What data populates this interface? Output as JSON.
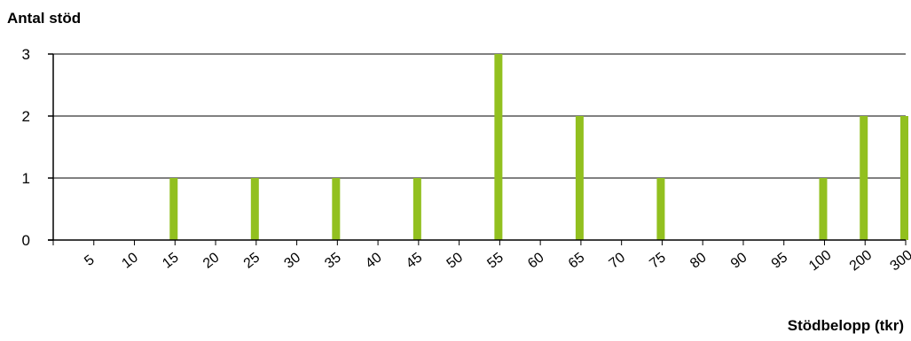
{
  "chart_data": {
    "type": "bar",
    "ylabel": "Antal stöd",
    "xlabel": "Stödbelopp (tkr)",
    "categories": [
      "5",
      "10",
      "15",
      "20",
      "25",
      "30",
      "35",
      "40",
      "45",
      "50",
      "55",
      "60",
      "65",
      "70",
      "75",
      "80",
      "90",
      "95",
      "100",
      "200",
      "300"
    ],
    "y_ticks": [
      "0",
      "1",
      "2",
      "3"
    ],
    "ylim": [
      0,
      3
    ],
    "grid": true,
    "bars": [
      {
        "x": 15,
        "value": 1
      },
      {
        "x": 25,
        "value": 1
      },
      {
        "x": 35,
        "value": 1
      },
      {
        "x": 45,
        "value": 1
      },
      {
        "x": 55,
        "value": 3
      },
      {
        "x": 65,
        "value": 2
      },
      {
        "x": 75,
        "value": 1
      },
      {
        "x": 100,
        "value": 1
      },
      {
        "x": 200,
        "value": 2
      },
      {
        "x": 300,
        "value": 2
      }
    ],
    "bar_color": "#92c01f"
  }
}
